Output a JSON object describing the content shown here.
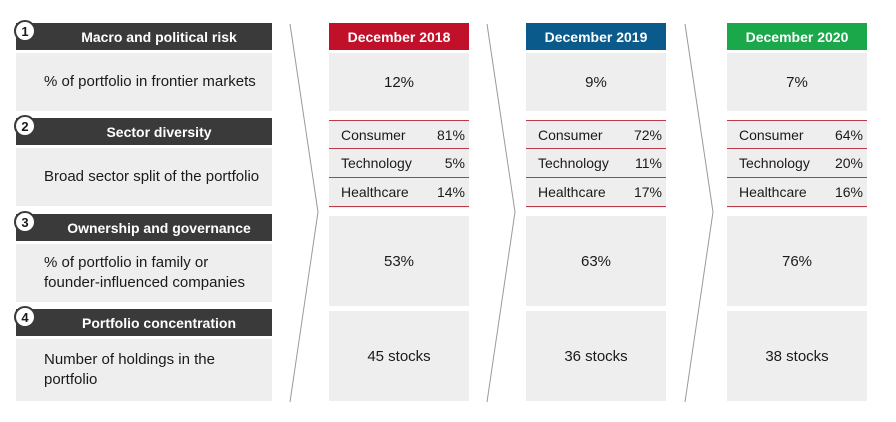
{
  "criteria": [
    {
      "num": "1",
      "title": "Macro and political risk",
      "description": "% of portfolio in frontier markets"
    },
    {
      "num": "2",
      "title": "Sector diversity",
      "description": "Broad sector split of the portfolio"
    },
    {
      "num": "3",
      "title": "Ownership and governance",
      "description": "% of portfolio in family or founder-influenced companies"
    },
    {
      "num": "4",
      "title": "Portfolio concentration",
      "description": "Number of holdings in the portfolio"
    }
  ],
  "periods": [
    {
      "label": "December 2018",
      "color": "#c0102a",
      "frontier": "12%",
      "sectors": [
        {
          "name": "Consumer",
          "value": "81%"
        },
        {
          "name": "Technology",
          "value": "5%"
        },
        {
          "name": "Healthcare",
          "value": "14%"
        }
      ],
      "family": "53%",
      "holdings": "45 stocks"
    },
    {
      "label": "December 2019",
      "color": "#0a5b8c",
      "frontier": "9%",
      "sectors": [
        {
          "name": "Consumer",
          "value": "72%"
        },
        {
          "name": "Technology",
          "value": "11%"
        },
        {
          "name": "Healthcare",
          "value": "17%"
        }
      ],
      "family": "63%",
      "holdings": "36 stocks"
    },
    {
      "label": "December 2020",
      "color": "#1aa84a",
      "frontier": "7%",
      "sectors": [
        {
          "name": "Consumer",
          "value": "64%"
        },
        {
          "name": "Technology",
          "value": "20%"
        },
        {
          "name": "Healthcare",
          "value": "16%"
        }
      ],
      "family": "76%",
      "holdings": "38 stocks"
    }
  ]
}
